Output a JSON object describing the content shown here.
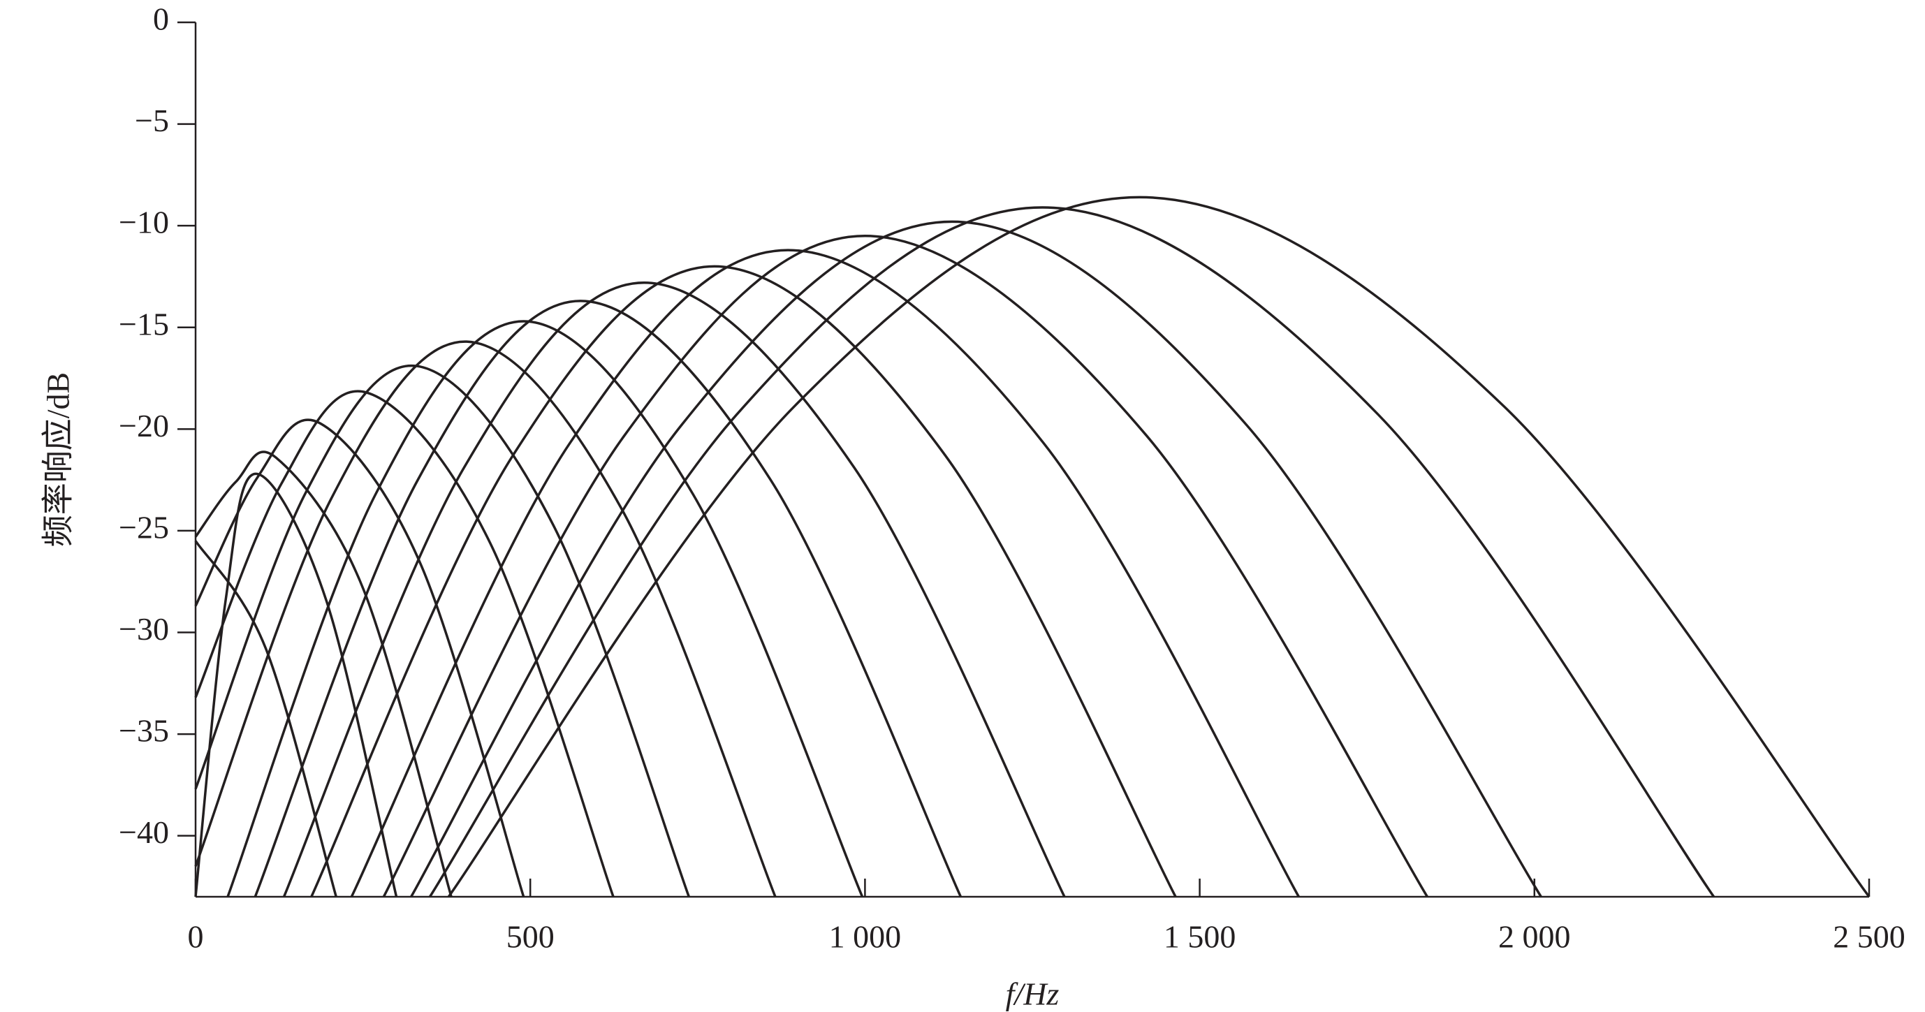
{
  "chart_data": {
    "type": "line",
    "xlabel": "f/Hz",
    "ylabel": "频率响应/dB",
    "xlim": [
      0,
      2500
    ],
    "ylim": [
      -43,
      0
    ],
    "xticks": [
      0,
      500,
      {
        "value": 1000,
        "label": "1 000"
      },
      {
        "value": 1500,
        "label": "1 500"
      },
      {
        "value": 2000,
        "label": "2 000"
      },
      {
        "value": 2500,
        "label": "2 500"
      }
    ],
    "yticks": [
      0,
      {
        "value": -5,
        "label": "−5"
      },
      {
        "value": -10,
        "label": "−10"
      },
      {
        "value": -15,
        "label": "−15"
      },
      {
        "value": -20,
        "label": "−20"
      },
      {
        "value": -25,
        "label": "−25"
      },
      {
        "value": -30,
        "label": "−30"
      },
      {
        "value": -35,
        "label": "−35"
      },
      {
        "value": -40,
        "label": "−40"
      }
    ],
    "grid": false,
    "series": [
      {
        "color": "#231f20",
        "x": [
          0,
          105,
          210
        ],
        "values": [
          -25.5,
          -30.8,
          -43
        ]
      },
      {
        "color": "#231f20",
        "x": [
          0,
          45,
          90,
          195,
          300
        ],
        "values": [
          -43,
          -28.4,
          -22.2,
          -28.4,
          -43
        ]
      },
      {
        "color": "#231f20",
        "x": [
          0,
          60,
          120,
          251,
          382
        ],
        "values": [
          -25.3,
          -22.6,
          -21.4,
          -27.9,
          -43
        ]
      },
      {
        "color": "#231f20",
        "x": [
          0,
          92,
          185,
          337,
          490
        ],
        "values": [
          -28.7,
          -22.4,
          -19.7,
          -26.7,
          -43
        ]
      },
      {
        "color": "#231f20",
        "x": [
          0,
          128,
          255,
          440,
          624
        ],
        "values": [
          -33.2,
          -22.7,
          -18.2,
          -25.6,
          -43
        ]
      },
      {
        "color": "#231f20",
        "x": [
          0,
          165,
          330,
          534,
          737
        ],
        "values": [
          -37.7,
          -23.1,
          -16.9,
          -24.7,
          -43
        ]
      },
      {
        "color": "#231f20",
        "x": [
          0,
          203,
          405,
          636,
          866
        ],
        "values": [
          -41.5,
          -23.4,
          -15.7,
          -23.9,
          -43
        ]
      },
      {
        "color": "#231f20",
        "x": [
          48,
          269,
          490,
          743,
          996
        ],
        "values": [
          -43,
          -23.2,
          -14.7,
          -23.2,
          -43
        ]
      },
      {
        "color": "#231f20",
        "x": [
          89,
          332,
          575,
          859,
          1143
        ],
        "values": [
          -43,
          -22.5,
          -13.7,
          -22.5,
          -43
        ]
      },
      {
        "color": "#231f20",
        "x": [
          132,
          401,
          670,
          984,
          1298
        ],
        "values": [
          -43,
          -21.9,
          -12.8,
          -21.9,
          -43
        ]
      },
      {
        "color": "#231f20",
        "x": [
          173,
          474,
          775,
          1120,
          1464
        ],
        "values": [
          -43,
          -21.3,
          -12.0,
          -21.3,
          -43
        ]
      },
      {
        "color": "#231f20",
        "x": [
          233,
          559,
          885,
          1267,
          1648
        ],
        "values": [
          -43,
          -20.7,
          -11.2,
          -20.7,
          -43
        ]
      },
      {
        "color": "#231f20",
        "x": [
          281,
          641,
          1000,
          1420,
          1840
        ],
        "values": [
          -43,
          -20.3,
          -10.5,
          -20.3,
          -43
        ]
      },
      {
        "color": "#231f20",
        "x": [
          322,
          726,
          1130,
          1570,
          2010
        ],
        "values": [
          -43,
          -19.8,
          -9.8,
          -19.8,
          -43
        ]
      },
      {
        "color": "#231f20",
        "x": [
          350,
          808,
          1265,
          1767,
          2268
        ],
        "values": [
          -43,
          -19.3,
          -9.1,
          -19.3,
          -43
        ]
      },
      {
        "color": "#231f20",
        "x": [
          378,
          894,
          1410,
          1955,
          2500
        ],
        "values": [
          -43,
          -18.9,
          -8.6,
          -18.9,
          -43
        ]
      }
    ]
  }
}
